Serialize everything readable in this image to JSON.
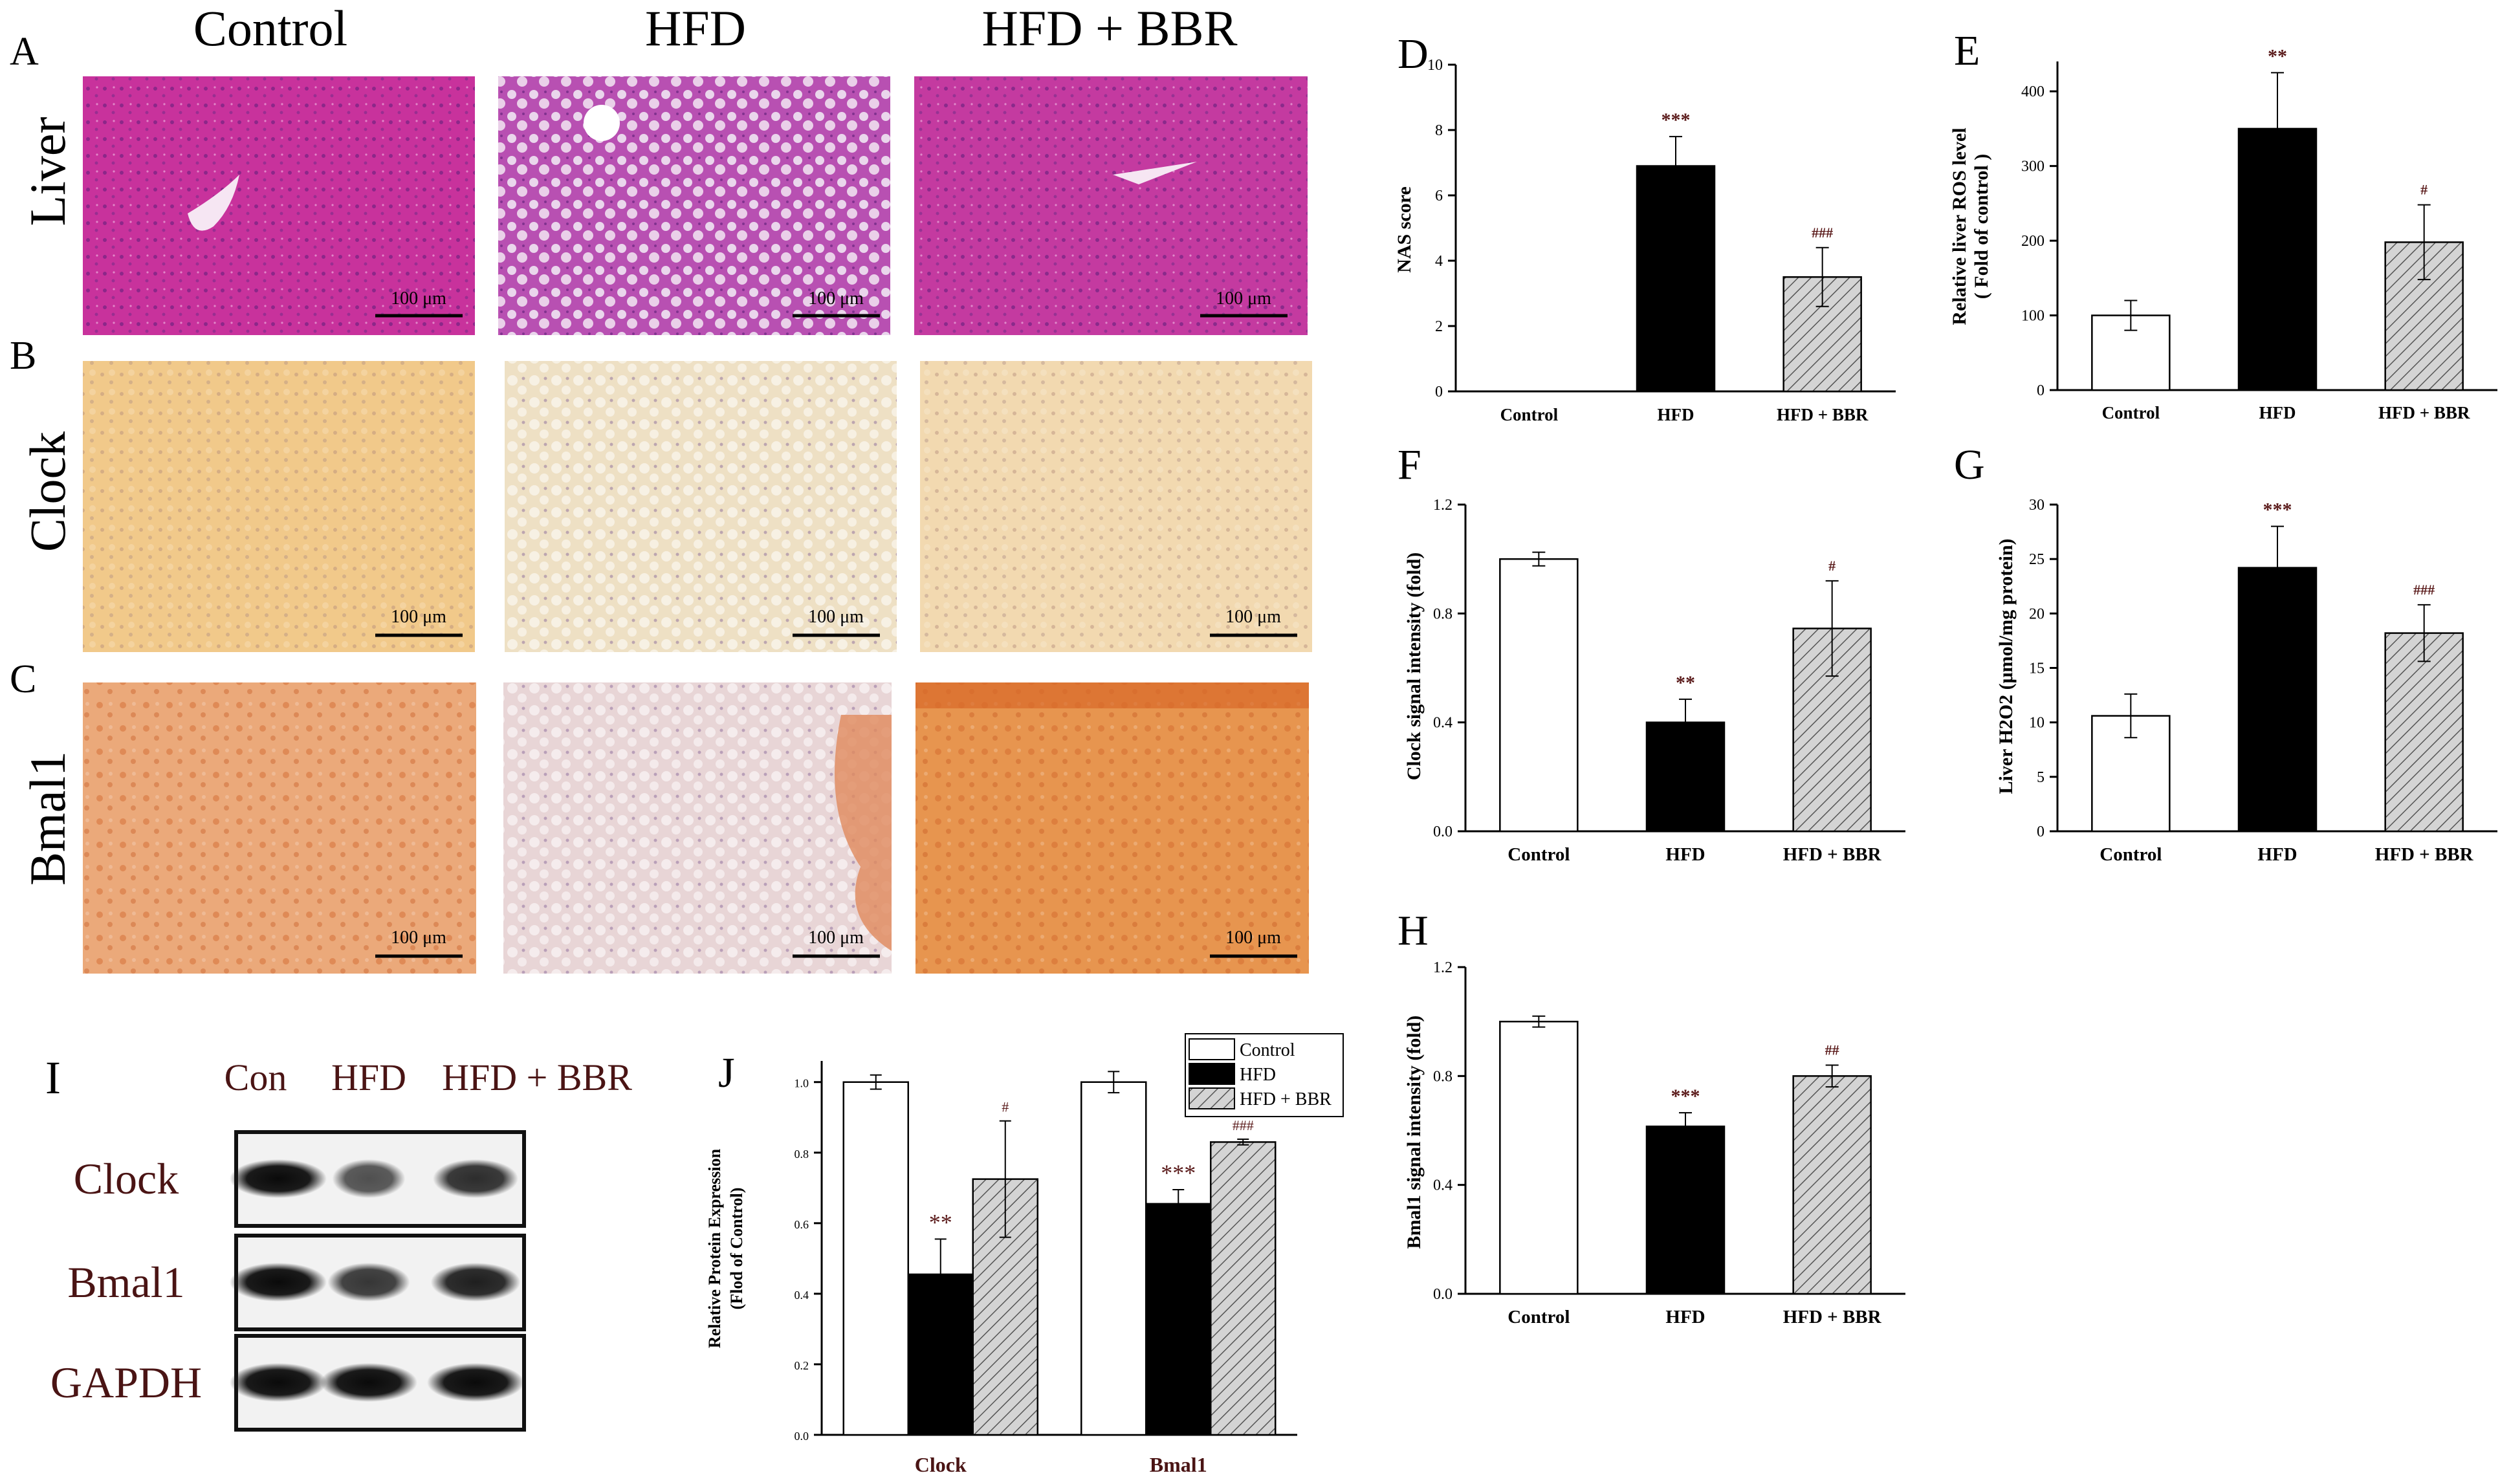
{
  "histology": {
    "panel_labels": [
      "A",
      "B",
      "C"
    ],
    "row_labels": [
      "Liver",
      "Clock",
      "Bmal1"
    ],
    "column_headers": [
      "Control",
      "HFD",
      "HFD + BBR"
    ],
    "scale_bar_label": "100 μm",
    "stain_colors": {
      "he_control": "#c8329c",
      "he_hfd": "#b850b2",
      "he_bbr": "#c43aa0",
      "ihc_clock": "#f1c98a",
      "ihc_clock_hfd": "#eee0c4",
      "ihc_bmal1": "#eba97a",
      "ihc_bmal1_hfd": "#e8d5d6",
      "ihc_bmal1_bbr": "#e7954f"
    }
  },
  "western_blot": {
    "panel_label": "I",
    "lane_labels": [
      "Con",
      "HFD",
      "HFD + BBR"
    ],
    "bands": [
      {
        "name": "Clock",
        "intensity": [
          1.0,
          0.45,
          0.73
        ]
      },
      {
        "name": "Bmal1",
        "intensity": [
          1.0,
          0.66,
          0.83
        ]
      },
      {
        "name": "GAPDH",
        "intensity": [
          1.0,
          1.0,
          1.0
        ]
      }
    ],
    "label_color": "#4a1414"
  },
  "chart_data": [
    {
      "id": "D",
      "panel_label": "D",
      "type": "bar",
      "categories": [
        "Control",
        "HFD",
        "HFD + BBR"
      ],
      "values": [
        0,
        6.9,
        3.5
      ],
      "errors": [
        0,
        0.9,
        0.9
      ],
      "annotations": [
        "",
        "***",
        "###"
      ],
      "ylabel": "NAS score",
      "ylim": [
        0,
        10
      ],
      "yticks": [
        "0",
        "2",
        "4",
        "6",
        "8",
        "10"
      ]
    },
    {
      "id": "E",
      "panel_label": "E",
      "type": "bar",
      "categories": [
        "Control",
        "HFD",
        "HFD + BBR"
      ],
      "values": [
        100,
        350,
        198
      ],
      "errors": [
        20,
        75,
        50
      ],
      "annotations": [
        "",
        "**",
        "#"
      ],
      "ylabel": [
        "Relative liver ROS level",
        "( Fold of control )"
      ],
      "ylim": [
        0,
        440
      ],
      "yticks": [
        "0",
        "100",
        "200",
        "300",
        "400"
      ]
    },
    {
      "id": "F",
      "panel_label": "F",
      "type": "bar",
      "categories": [
        "Control",
        "HFD",
        "HFD + BBR"
      ],
      "values": [
        1.0,
        0.4,
        0.745
      ],
      "errors": [
        0.025,
        0.085,
        0.175
      ],
      "annotations": [
        "",
        "**",
        "#"
      ],
      "ylabel": "Clock signal intensity (fold)",
      "ylim": [
        0,
        1.2
      ],
      "yticks": [
        "0.0",
        "0.4",
        "0.8",
        "1.2"
      ]
    },
    {
      "id": "G",
      "panel_label": "G",
      "type": "bar",
      "categories": [
        "Control",
        "HFD",
        "HFD + BBR"
      ],
      "values": [
        10.6,
        24.2,
        18.2
      ],
      "errors": [
        2.0,
        3.8,
        2.6
      ],
      "annotations": [
        "",
        "***",
        "###"
      ],
      "ylabel": "Liver H2O2 (μmol/mg protein)",
      "ylim": [
        0,
        30
      ],
      "yticks": [
        "0",
        "5",
        "10",
        "15",
        "20",
        "25",
        "30"
      ]
    },
    {
      "id": "H",
      "panel_label": "H",
      "type": "bar",
      "categories": [
        "Control",
        "HFD",
        "HFD + BBR"
      ],
      "values": [
        1.0,
        0.615,
        0.8
      ],
      "errors": [
        0.02,
        0.05,
        0.04
      ],
      "annotations": [
        "",
        "***",
        "##"
      ],
      "ylabel": "Bmal1 signal intensity (fold)",
      "ylim": [
        0,
        1.2
      ],
      "yticks": [
        "0.0",
        "0.4",
        "0.8",
        "1.2"
      ]
    },
    {
      "id": "J",
      "panel_label": "J",
      "type": "bar",
      "categories": [
        "Clock",
        "Bmal1"
      ],
      "series": [
        {
          "name": "Control",
          "values": [
            1.0,
            1.0
          ],
          "errors": [
            0.02,
            0.03
          ]
        },
        {
          "name": "HFD",
          "values": [
            0.455,
            0.655
          ],
          "errors": [
            0.1,
            0.04
          ]
        },
        {
          "name": "HFD + BBR",
          "values": [
            0.725,
            0.83
          ],
          "errors": [
            0.165,
            0.008
          ]
        }
      ],
      "annotations": [
        [
          "",
          "**",
          "#"
        ],
        [
          "",
          "***",
          "###"
        ]
      ],
      "ylabel": [
        "Relative Protein Expression",
        "(Flod of Control)"
      ],
      "ylim": [
        0,
        1.06
      ],
      "yticks": [
        "0.0",
        "0.2",
        "0.4",
        "0.6",
        "0.8",
        "1.0"
      ],
      "legend_position": "top-right"
    }
  ],
  "colors": {
    "control_fill": "#ffffff",
    "hfd_fill": "#000000",
    "bbr_fill": "#d4d4d4",
    "hatch": "#555555",
    "annotation": "#5a1a1a",
    "axis": "#000000"
  }
}
